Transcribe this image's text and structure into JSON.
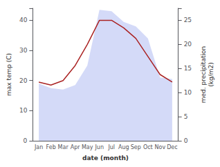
{
  "chart_data": {
    "type": "line",
    "categories": [
      "Jan",
      "Feb",
      "Mar",
      "Apr",
      "May",
      "Jun",
      "Jul",
      "Aug",
      "Sep",
      "Oct",
      "Nov",
      "Dec"
    ],
    "series": [
      {
        "type": "area",
        "color": "#c5cdf5",
        "values": [
          19.0,
          17.5,
          17.0,
          18.5,
          25.0,
          43.5,
          43.0,
          39.5,
          38.0,
          34.0,
          21.0,
          20.5
        ]
      },
      {
        "type": "line",
        "color": "#aa2222",
        "values": [
          19.5,
          18.5,
          20.0,
          25.0,
          32.0,
          40.0,
          40.0,
          37.5,
          34.0,
          28.0,
          22.0,
          19.5
        ]
      }
    ],
    "xlabel": "date (month)",
    "ylabel": "max temp (C)",
    "y2label": "med. precipitation\n(kg/m2)",
    "ylim": [
      0,
      44
    ],
    "yticks": [
      0,
      10,
      20,
      30,
      40
    ],
    "y2lim": [
      0,
      27.5
    ],
    "y2ticks": [
      0,
      5,
      10,
      15,
      20,
      25
    ],
    "grid": false
  }
}
